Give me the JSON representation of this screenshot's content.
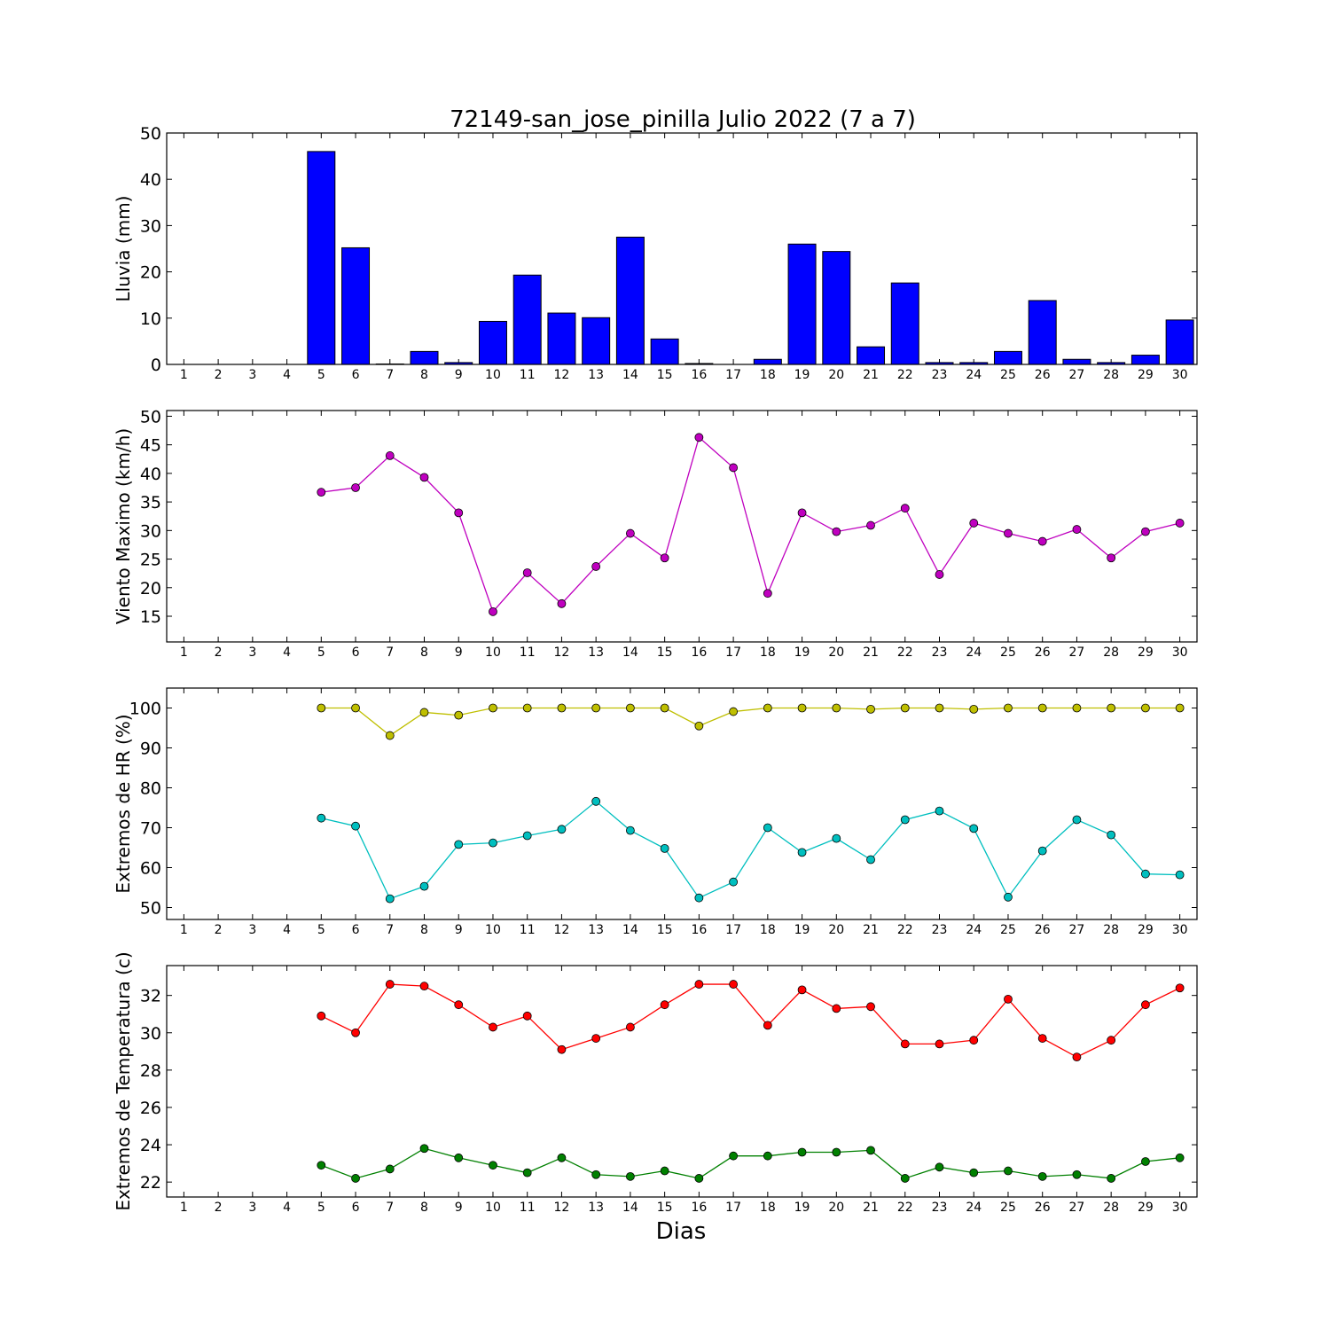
{
  "figure": {
    "title": "72149-san_jose_pinilla Julio 2022  (7 a 7)",
    "xlabel": "Dias"
  },
  "chart_data": [
    {
      "type": "bar",
      "ylabel": "Lluvia (mm)",
      "ylim": [
        0,
        50
      ],
      "yticks": [
        0,
        10,
        20,
        30,
        40,
        50
      ],
      "xlim": [
        0.5,
        30.5
      ],
      "xticks": [
        1,
        2,
        3,
        4,
        5,
        6,
        7,
        8,
        9,
        10,
        11,
        12,
        13,
        14,
        15,
        16,
        17,
        18,
        19,
        20,
        21,
        22,
        23,
        24,
        25,
        26,
        27,
        28,
        29,
        30
      ],
      "series": [
        {
          "color": "#0000ff",
          "x": [
            5,
            6,
            7,
            8,
            9,
            10,
            11,
            12,
            13,
            14,
            15,
            16,
            17,
            18,
            19,
            20,
            21,
            22,
            23,
            24,
            25,
            26,
            27,
            28,
            29,
            30
          ],
          "values": [
            46.0,
            25.2,
            0.1,
            2.8,
            0.4,
            9.3,
            19.3,
            11.1,
            10.1,
            27.5,
            5.5,
            0.2,
            0.0,
            1.1,
            26.0,
            24.4,
            3.8,
            17.6,
            0.4,
            0.4,
            2.8,
            13.8,
            1.1,
            0.4,
            2.0,
            9.6
          ]
        }
      ]
    },
    {
      "type": "line",
      "ylabel": "Viento Maximo (km/h)",
      "ylim": [
        10.5,
        51
      ],
      "yticks": [
        15,
        20,
        25,
        30,
        35,
        40,
        45,
        50
      ],
      "xlim": [
        0.5,
        30.5
      ],
      "xticks": [
        1,
        2,
        3,
        4,
        5,
        6,
        7,
        8,
        9,
        10,
        11,
        12,
        13,
        14,
        15,
        16,
        17,
        18,
        19,
        20,
        21,
        22,
        23,
        24,
        25,
        26,
        27,
        28,
        29,
        30
      ],
      "series": [
        {
          "color": "#bf00bf",
          "x": [
            5,
            6,
            7,
            8,
            9,
            10,
            11,
            12,
            13,
            14,
            15,
            16,
            17,
            18,
            19,
            20,
            21,
            22,
            23,
            24,
            25,
            26,
            27,
            28,
            29,
            30
          ],
          "values": [
            36.7,
            37.5,
            43.1,
            39.3,
            33.1,
            15.8,
            22.6,
            17.2,
            23.7,
            29.5,
            25.2,
            46.3,
            41.0,
            19.0,
            33.1,
            29.8,
            30.9,
            33.9,
            22.3,
            31.3,
            29.5,
            28.1,
            30.2,
            25.2,
            29.8,
            31.3
          ]
        }
      ]
    },
    {
      "type": "line",
      "ylabel": "Extremos de HR (%)",
      "ylim": [
        47,
        105
      ],
      "yticks": [
        50,
        60,
        70,
        80,
        90,
        100
      ],
      "xlim": [
        0.5,
        30.5
      ],
      "xticks": [
        1,
        2,
        3,
        4,
        5,
        6,
        7,
        8,
        9,
        10,
        11,
        12,
        13,
        14,
        15,
        16,
        17,
        18,
        19,
        20,
        21,
        22,
        23,
        24,
        25,
        26,
        27,
        28,
        29,
        30
      ],
      "series": [
        {
          "color": "#bfbf00",
          "x": [
            5,
            6,
            7,
            8,
            9,
            10,
            11,
            12,
            13,
            14,
            15,
            16,
            17,
            18,
            19,
            20,
            21,
            22,
            23,
            24,
            25,
            26,
            27,
            28,
            29,
            30
          ],
          "values": [
            100,
            100,
            93.1,
            98.9,
            98.2,
            100,
            100,
            100,
            100,
            100,
            100,
            95.5,
            99.1,
            100,
            100,
            100,
            99.7,
            100,
            100,
            99.7,
            100,
            100,
            100,
            100,
            100,
            100
          ]
        },
        {
          "color": "#00bfbf",
          "x": [
            5,
            6,
            7,
            8,
            9,
            10,
            11,
            12,
            13,
            14,
            15,
            16,
            17,
            18,
            19,
            20,
            21,
            22,
            23,
            24,
            25,
            26,
            27,
            28,
            29,
            30
          ],
          "values": [
            72.4,
            70.4,
            52.2,
            55.3,
            65.8,
            66.2,
            68.0,
            69.6,
            76.6,
            69.3,
            64.8,
            52.4,
            56.4,
            70.0,
            63.8,
            67.3,
            62.0,
            72.0,
            74.2,
            69.8,
            52.6,
            64.2,
            72.0,
            68.2,
            58.4,
            58.2
          ]
        }
      ]
    },
    {
      "type": "line",
      "ylabel": "Extremos de Temperatura (c)",
      "ylim": [
        21.2,
        33.6
      ],
      "yticks": [
        22,
        24,
        26,
        28,
        30,
        32
      ],
      "xlim": [
        0.5,
        30.5
      ],
      "xticks": [
        1,
        2,
        3,
        4,
        5,
        6,
        7,
        8,
        9,
        10,
        11,
        12,
        13,
        14,
        15,
        16,
        17,
        18,
        19,
        20,
        21,
        22,
        23,
        24,
        25,
        26,
        27,
        28,
        29,
        30
      ],
      "series": [
        {
          "color": "#ff0000",
          "x": [
            5,
            6,
            7,
            8,
            9,
            10,
            11,
            12,
            13,
            14,
            15,
            16,
            17,
            18,
            19,
            20,
            21,
            22,
            23,
            24,
            25,
            26,
            27,
            28,
            29,
            30
          ],
          "values": [
            30.9,
            30.0,
            32.6,
            32.5,
            31.5,
            30.3,
            30.9,
            29.1,
            29.7,
            30.3,
            31.5,
            32.6,
            32.6,
            30.4,
            32.3,
            31.3,
            31.4,
            29.4,
            29.4,
            29.6,
            31.8,
            29.7,
            28.7,
            29.6,
            31.5,
            32.4
          ]
        },
        {
          "color": "#008000",
          "x": [
            5,
            6,
            7,
            8,
            9,
            10,
            11,
            12,
            13,
            14,
            15,
            16,
            17,
            18,
            19,
            20,
            21,
            22,
            23,
            24,
            25,
            26,
            27,
            28,
            29,
            30
          ],
          "values": [
            22.9,
            22.2,
            22.7,
            23.8,
            23.3,
            22.9,
            22.5,
            23.3,
            22.4,
            22.3,
            22.6,
            22.2,
            23.4,
            23.4,
            23.6,
            23.6,
            23.7,
            22.2,
            22.8,
            22.5,
            22.6,
            22.3,
            22.4,
            22.2,
            23.1,
            23.3
          ]
        }
      ]
    }
  ]
}
